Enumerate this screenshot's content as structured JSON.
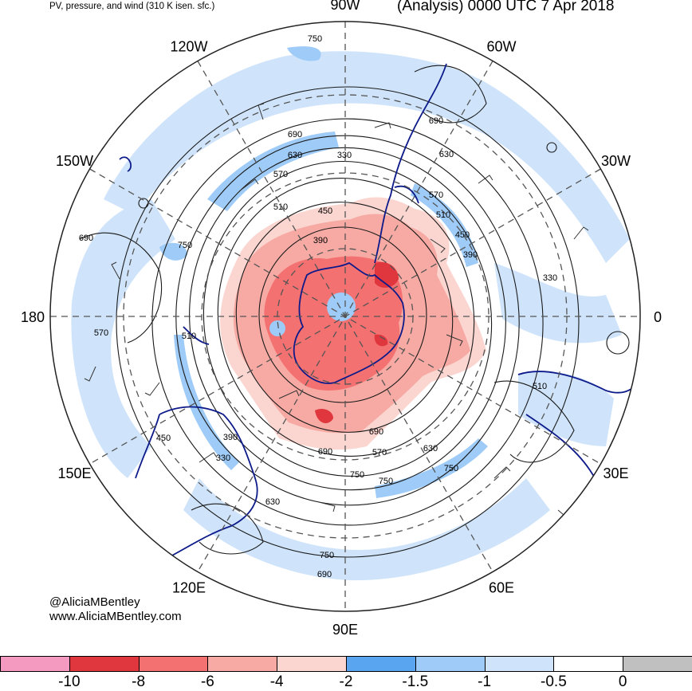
{
  "header": {
    "left_title": "PV, pressure, and wind (310 K isen. sfc.)",
    "right_title": "(Analysis) 0000 UTC 7 Apr 2018"
  },
  "longitude_labels": [
    {
      "text": "90W",
      "angle": 90
    },
    {
      "text": "60W",
      "angle": 60
    },
    {
      "text": "30W",
      "angle": 30
    },
    {
      "text": "0",
      "angle": 0
    },
    {
      "text": "30E",
      "angle": -30
    },
    {
      "text": "60E",
      "angle": -60
    },
    {
      "text": "90E",
      "angle": -90
    },
    {
      "text": "120E",
      "angle": -120
    },
    {
      "text": "150E",
      "angle": -150
    },
    {
      "text": "180",
      "angle": 180
    },
    {
      "text": "150W",
      "angle": 150
    },
    {
      "text": "120W",
      "angle": 120
    }
  ],
  "contour_labels": [
    "750",
    "690",
    "630",
    "570",
    "510",
    "450",
    "390",
    "330",
    "690",
    "630",
    "570",
    "510",
    "450",
    "390",
    "330",
    "690",
    "750",
    "570",
    "510",
    "450",
    "390",
    "330",
    "630",
    "690",
    "570",
    "630",
    "750",
    "750",
    "750",
    "690",
    "750",
    "690",
    "510"
  ],
  "credits": {
    "handle": "@AliciaMBentley",
    "website": "www.AliciaMBentley.com"
  },
  "colorbar": {
    "colors": [
      "#f49ac1",
      "#e0373f",
      "#f47171",
      "#f7aaa3",
      "#fbd6d1",
      "#5aa5f0",
      "#9ecbf7",
      "#cfe4fb",
      "#ffffff",
      "#c0c0c0"
    ],
    "ticks": [
      "-10",
      "-8",
      "-6",
      "-4",
      "-2",
      "-1.5",
      "-1",
      "-0.5",
      "0"
    ]
  },
  "colors": {
    "negative_pv_fill": "#f59a96",
    "light_blue_fill": "#cfe4fb",
    "coastline": "#0d1a8a"
  }
}
